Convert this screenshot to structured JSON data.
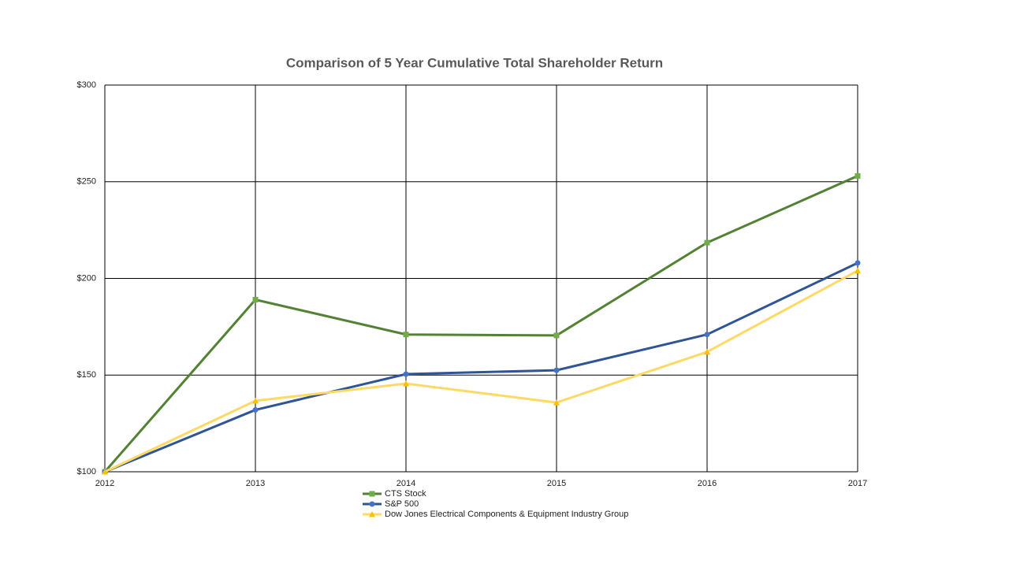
{
  "chart_data": {
    "type": "line",
    "title": "Comparison of 5 Year Cumulative Total Shareholder Return",
    "categories": [
      "2012",
      "2013",
      "2014",
      "2015",
      "2016",
      "2017"
    ],
    "series": [
      {
        "name": "CTS Stock",
        "color": "#548235",
        "marker_color": "#70ad47",
        "marker": "square",
        "values": [
          100,
          189,
          171,
          170.5,
          218.5,
          253
        ]
      },
      {
        "name": "S&P 500",
        "color": "#2f5597",
        "marker_color": "#4472c4",
        "marker": "circle",
        "values": [
          100,
          132,
          150.5,
          152.5,
          171,
          208
        ]
      },
      {
        "name": "Dow Jones Electrical Components & Equipment Industry Group",
        "color": "#ffd966",
        "marker_color": "#ffc000",
        "marker": "triangle",
        "values": [
          100,
          136.7,
          145.6,
          135.8,
          162,
          204
        ]
      }
    ],
    "ylim": [
      100,
      300
    ],
    "yticks": [
      {
        "value": 100,
        "label": "$100"
      },
      {
        "value": 150,
        "label": "$150"
      },
      {
        "value": 200,
        "label": "$200"
      },
      {
        "value": 250,
        "label": "$250"
      },
      {
        "value": 300,
        "label": "$300"
      }
    ],
    "grid": true,
    "legend": "bottom"
  }
}
